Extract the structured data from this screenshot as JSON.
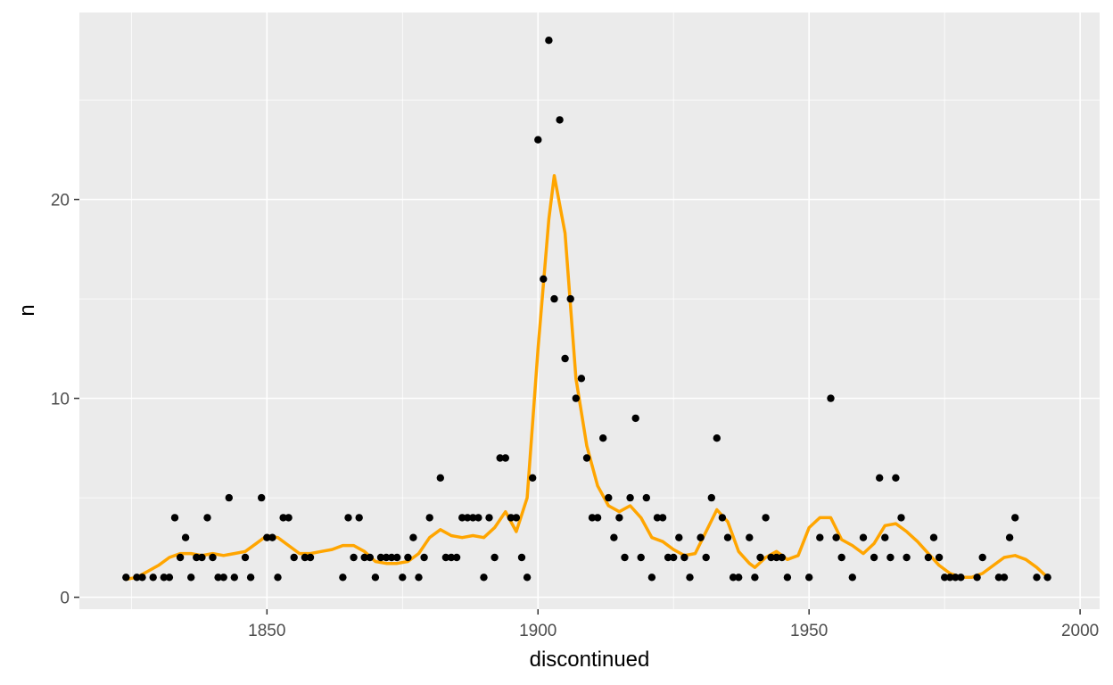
{
  "chart_data": {
    "type": "scatter",
    "title": "",
    "xlabel": "discontinued",
    "ylabel": "n",
    "xlim": [
      1815.4,
      2003.6
    ],
    "ylim": [
      -0.6,
      29.4
    ],
    "x_ticks": [
      1850,
      1900,
      1950,
      2000
    ],
    "y_ticks": [
      0,
      10,
      20
    ],
    "grid": true,
    "legend": "none",
    "colors": {
      "panel_background": "#ebebeb",
      "grid_major": "#ffffff",
      "points": "#000000",
      "smooth_line": "#ffa500",
      "tick_label": "#4d4d4d",
      "tick_mark": "#333333"
    },
    "series": [
      {
        "type": "points",
        "x": [
          1824,
          1826,
          1827,
          1829,
          1831,
          1832,
          1833,
          1834,
          1835,
          1836,
          1837,
          1838,
          1839,
          1840,
          1841,
          1842,
          1843,
          1844,
          1846,
          1847,
          1849,
          1850,
          1851,
          1852,
          1853,
          1854,
          1855,
          1857,
          1858,
          1864,
          1865,
          1866,
          1867,
          1868,
          1869,
          1870,
          1871,
          1872,
          1873,
          1874,
          1875,
          1876,
          1877,
          1878,
          1879,
          1880,
          1882,
          1883,
          1884,
          1885,
          1886,
          1887,
          1888,
          1889,
          1890,
          1891,
          1892,
          1893,
          1894,
          1895,
          1896,
          1897,
          1898,
          1899,
          1900,
          1901,
          1902,
          1903,
          1904,
          1905,
          1906,
          1907,
          1908,
          1909,
          1910,
          1911,
          1912,
          1913,
          1914,
          1915,
          1916,
          1917,
          1918,
          1919,
          1920,
          1921,
          1922,
          1923,
          1924,
          1925,
          1926,
          1927,
          1928,
          1930,
          1931,
          1932,
          1933,
          1934,
          1935,
          1936,
          1937,
          1939,
          1940,
          1941,
          1942,
          1943,
          1944,
          1945,
          1946,
          1950,
          1952,
          1954,
          1955,
          1956,
          1958,
          1960,
          1962,
          1963,
          1964,
          1965,
          1966,
          1967,
          1968,
          1972,
          1973,
          1974,
          1975,
          1976,
          1977,
          1978,
          1981,
          1982,
          1985,
          1986,
          1987,
          1988,
          1992,
          1994
        ],
        "y": [
          1,
          1,
          1,
          1,
          1,
          1,
          4,
          2,
          3,
          1,
          2,
          2,
          4,
          2,
          1,
          1,
          5,
          1,
          2,
          1,
          5,
          3,
          3,
          1,
          4,
          4,
          2,
          2,
          2,
          1,
          4,
          2,
          4,
          2,
          2,
          1,
          2,
          2,
          2,
          2,
          1,
          2,
          3,
          1,
          2,
          4,
          6,
          2,
          2,
          2,
          4,
          4,
          4,
          4,
          1,
          4,
          2,
          7,
          7,
          4,
          4,
          2,
          1,
          6,
          23,
          16,
          28,
          15,
          24,
          12,
          15,
          10,
          11,
          7,
          4,
          4,
          8,
          5,
          3,
          4,
          2,
          5,
          9,
          2,
          5,
          1,
          4,
          4,
          2,
          2,
          3,
          2,
          1,
          3,
          2,
          5,
          8,
          4,
          3,
          1,
          1,
          3,
          1,
          2,
          4,
          2,
          2,
          2,
          1,
          1,
          3,
          10,
          3,
          2,
          1,
          3,
          2,
          6,
          3,
          2,
          6,
          4,
          2,
          2,
          3,
          2,
          1,
          1,
          1,
          1,
          1,
          2,
          1,
          1,
          3,
          4,
          1,
          1
        ]
      },
      {
        "type": "smooth_line",
        "x": [
          1824,
          1826,
          1828,
          1830,
          1832,
          1834,
          1836,
          1838,
          1840,
          1842,
          1844,
          1846,
          1848,
          1850,
          1852,
          1854,
          1856,
          1858,
          1860,
          1862,
          1864,
          1866,
          1868,
          1870,
          1872,
          1874,
          1876,
          1878,
          1880,
          1882,
          1884,
          1886,
          1888,
          1890,
          1892,
          1894,
          1896,
          1898,
          1900,
          1902,
          1903,
          1905,
          1907,
          1909,
          1911,
          1913,
          1915,
          1917,
          1919,
          1921,
          1923,
          1925,
          1927,
          1929,
          1931,
          1933,
          1935,
          1937,
          1939,
          1940,
          1942,
          1944,
          1946,
          1948,
          1950,
          1952,
          1954,
          1956,
          1958,
          1960,
          1962,
          1964,
          1966,
          1968,
          1970,
          1972,
          1974,
          1976,
          1978,
          1980,
          1982,
          1984,
          1986,
          1988,
          1990,
          1992,
          1994
        ],
        "y": [
          0.9,
          1.0,
          1.3,
          1.6,
          2.0,
          2.2,
          2.2,
          2.1,
          2.2,
          2.1,
          2.2,
          2.3,
          2.7,
          3.1,
          3.0,
          2.6,
          2.2,
          2.2,
          2.3,
          2.4,
          2.6,
          2.6,
          2.3,
          1.8,
          1.7,
          1.7,
          1.8,
          2.2,
          3.0,
          3.4,
          3.1,
          3.0,
          3.1,
          3.0,
          3.5,
          4.3,
          3.3,
          5.0,
          12.5,
          19.0,
          21.2,
          18.3,
          11.0,
          7.6,
          5.6,
          4.6,
          4.3,
          4.6,
          4.0,
          3.0,
          2.8,
          2.4,
          2.1,
          2.2,
          3.3,
          4.4,
          3.8,
          2.3,
          1.7,
          1.5,
          2.0,
          2.3,
          1.9,
          2.1,
          3.5,
          4.0,
          4.0,
          2.9,
          2.6,
          2.2,
          2.7,
          3.6,
          3.7,
          3.3,
          2.8,
          2.2,
          1.6,
          1.2,
          1.0,
          1.0,
          1.2,
          1.6,
          2.0,
          2.1,
          1.9,
          1.5,
          1.0
        ]
      }
    ]
  }
}
